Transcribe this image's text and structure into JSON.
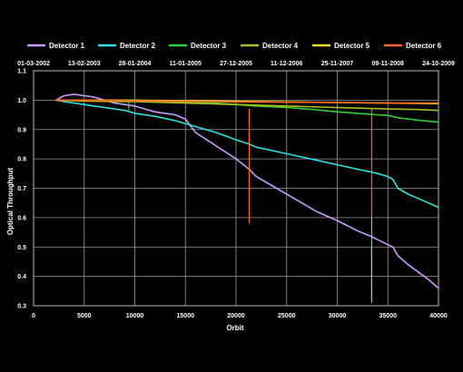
{
  "chart_data": {
    "type": "line",
    "xlabel": "Orbit",
    "ylabel": "Optical Throughput",
    "xlim": [
      0,
      40000
    ],
    "ylim": [
      0.3,
      1.1
    ],
    "x_ticks": [
      0,
      5000,
      10000,
      15000,
      20000,
      25000,
      30000,
      35000,
      40000
    ],
    "y_ticks": [
      0.3,
      0.4,
      0.5,
      0.6,
      0.7,
      0.8,
      0.9,
      1.0,
      1.1
    ],
    "grid": true,
    "legend_position": "top",
    "background": "#000000",
    "top_axis_dates": [
      "01-03-2002",
      "13-02-2003",
      "28-01-2004",
      "11-01-2005",
      "27-12-2005",
      "11-12-2006",
      "25-11-2007",
      "09-11-2008",
      "24-10-2009"
    ],
    "series": [
      {
        "name": "Detector 1",
        "color": "#cc99ff",
        "x": [
          2200,
          3000,
          4000,
          5000,
          6000,
          7000,
          8000,
          9000,
          10000,
          11000,
          12000,
          13000,
          14000,
          15000,
          16000,
          18000,
          20000,
          21300,
          22000,
          24000,
          26000,
          28000,
          30000,
          32000,
          33400,
          34000,
          35500,
          36000,
          37000,
          38000,
          39000,
          40000
        ],
        "values": [
          1.0,
          1.015,
          1.02,
          1.015,
          1.01,
          1.0,
          0.99,
          0.985,
          0.98,
          0.97,
          0.96,
          0.955,
          0.95,
          0.935,
          0.89,
          0.845,
          0.8,
          0.765,
          0.74,
          0.7,
          0.66,
          0.62,
          0.59,
          0.555,
          0.535,
          0.525,
          0.5,
          0.47,
          0.44,
          0.415,
          0.39,
          0.36
        ]
      },
      {
        "name": "Detector 2",
        "color": "#33e0e0",
        "x": [
          2200,
          3000,
          4000,
          5000,
          6000,
          7000,
          8000,
          9000,
          10000,
          12000,
          14000,
          16000,
          18000,
          20000,
          21300,
          22000,
          24000,
          26000,
          28000,
          30000,
          32000,
          33400,
          34000,
          35000,
          35500,
          36000,
          37000,
          38000,
          39000,
          40000
        ],
        "values": [
          1.0,
          0.995,
          0.99,
          0.985,
          0.98,
          0.975,
          0.97,
          0.965,
          0.955,
          0.945,
          0.93,
          0.91,
          0.89,
          0.865,
          0.85,
          0.84,
          0.825,
          0.81,
          0.795,
          0.78,
          0.765,
          0.755,
          0.75,
          0.74,
          0.73,
          0.7,
          0.68,
          0.665,
          0.65,
          0.635
        ]
      },
      {
        "name": "Detector 3",
        "color": "#33cc33",
        "x": [
          2200,
          5000,
          8000,
          10000,
          12000,
          15000,
          18000,
          20000,
          22000,
          25000,
          28000,
          30000,
          32000,
          34000,
          35000,
          36000,
          38000,
          40000
        ],
        "values": [
          1.0,
          1.0,
          1.0,
          1.0,
          0.997,
          0.993,
          0.99,
          0.985,
          0.98,
          0.975,
          0.967,
          0.96,
          0.955,
          0.95,
          0.948,
          0.94,
          0.932,
          0.925
        ]
      },
      {
        "name": "Detector 4",
        "color": "#a8c020",
        "x": [
          2200,
          5000,
          8000,
          10000,
          15000,
          20000,
          25000,
          30000,
          35000,
          38000,
          40000
        ],
        "values": [
          1.0,
          0.997,
          0.995,
          0.995,
          0.99,
          0.985,
          0.98,
          0.975,
          0.97,
          0.968,
          0.965
        ]
      },
      {
        "name": "Detector 5",
        "color": "#f0e020",
        "x": [
          2200,
          5000,
          10000,
          15000,
          20000,
          25000,
          30000,
          35000,
          40000
        ],
        "values": [
          1.0,
          1.0,
          1.0,
          0.998,
          0.996,
          0.994,
          0.992,
          0.99,
          0.988
        ]
      },
      {
        "name": "Detector 6",
        "color": "#ff6622",
        "x": [
          2200,
          5000,
          10000,
          15000,
          20000,
          25000,
          30000,
          35000,
          40000
        ],
        "values": [
          1.0,
          1.0,
          0.998,
          0.996,
          0.994,
          0.993,
          0.992,
          0.99,
          0.99
        ]
      }
    ],
    "spikes": [
      {
        "color": "#ff6622",
        "x": 21300,
        "from": 0.97,
        "to": 0.58
      },
      {
        "color": "#ff6622",
        "x": 33400,
        "from": 0.97,
        "to": 0.6
      },
      {
        "color": "#33e0e0",
        "x": 33400,
        "from": 0.6,
        "to": 0.32
      },
      {
        "color": "#33cc33",
        "x": 9400,
        "from": 1.0,
        "to": 0.96
      },
      {
        "color": "#cc99ff",
        "x": 33400,
        "from": 0.5,
        "to": 0.31
      }
    ]
  }
}
